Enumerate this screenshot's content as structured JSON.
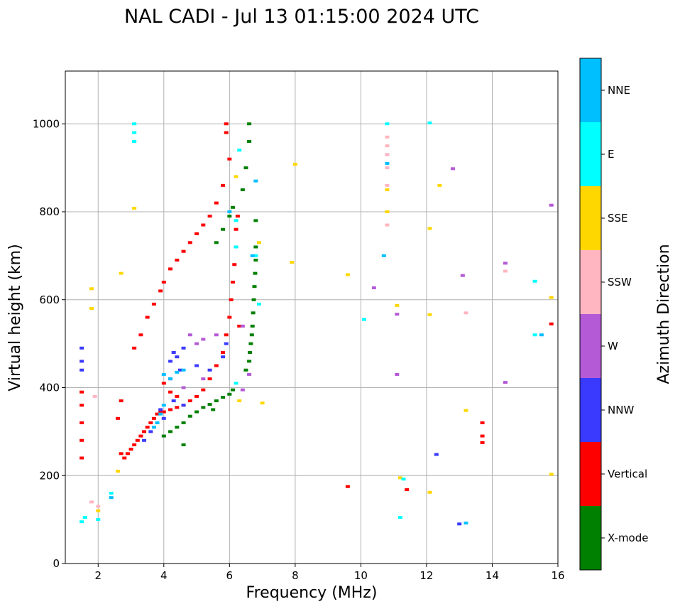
{
  "chart_data": {
    "type": "scatter",
    "title": "NAL CADI - Jul 13 01:15:00 2024 UTC",
    "xlabel": "Frequency (MHz)",
    "ylabel": "Virtual height (km)",
    "xlim": [
      1,
      16
    ],
    "ylim": [
      0,
      1120
    ],
    "xticks": [
      2,
      4,
      6,
      8,
      10,
      12,
      14,
      16
    ],
    "yticks": [
      0,
      200,
      400,
      600,
      800,
      1000
    ],
    "grid": true,
    "colorbar": {
      "label": "Azimuth Direction",
      "categories": [
        {
          "name": "X-mode",
          "color": "#008000"
        },
        {
          "name": "Vertical",
          "color": "#ff0000"
        },
        {
          "name": "NNW",
          "color": "#3a3aff"
        },
        {
          "name": "W",
          "color": "#b45ad6"
        },
        {
          "name": "SSW",
          "color": "#ffb6c1"
        },
        {
          "name": "SSE",
          "color": "#ffd700"
        },
        {
          "name": "E",
          "color": "#00ffff"
        },
        {
          "name": "NNE",
          "color": "#00bfff"
        }
      ]
    },
    "series": [
      {
        "name": "X-mode",
        "points": [
          [
            4.0,
            290
          ],
          [
            4.2,
            300
          ],
          [
            4.4,
            310
          ],
          [
            4.6,
            320
          ],
          [
            4.8,
            335
          ],
          [
            5.0,
            345
          ],
          [
            5.2,
            355
          ],
          [
            5.4,
            362
          ],
          [
            5.6,
            370
          ],
          [
            5.8,
            378
          ],
          [
            6.0,
            385
          ],
          [
            6.1,
            395
          ],
          [
            6.5,
            440
          ],
          [
            6.6,
            460
          ],
          [
            6.62,
            480
          ],
          [
            6.65,
            500
          ],
          [
            6.68,
            520
          ],
          [
            6.7,
            540
          ],
          [
            6.72,
            570
          ],
          [
            6.74,
            600
          ],
          [
            6.76,
            630
          ],
          [
            6.78,
            660
          ],
          [
            6.8,
            690
          ],
          [
            6.8,
            720
          ],
          [
            6.8,
            780
          ],
          [
            5.6,
            730
          ],
          [
            5.8,
            760
          ],
          [
            6.0,
            790
          ],
          [
            6.1,
            810
          ],
          [
            6.4,
            850
          ],
          [
            6.6,
            960
          ],
          [
            6.6,
            1000
          ],
          [
            6.5,
            900
          ],
          [
            4.6,
            270
          ],
          [
            5.5,
            350
          ]
        ]
      },
      {
        "name": "Vertical",
        "points": [
          [
            1.5,
            240
          ],
          [
            1.5,
            280
          ],
          [
            1.5,
            320
          ],
          [
            1.5,
            360
          ],
          [
            1.5,
            390
          ],
          [
            2.7,
            250
          ],
          [
            2.8,
            240
          ],
          [
            2.9,
            250
          ],
          [
            3.0,
            260
          ],
          [
            3.1,
            270
          ],
          [
            3.2,
            280
          ],
          [
            3.3,
            290
          ],
          [
            3.4,
            300
          ],
          [
            3.5,
            310
          ],
          [
            3.6,
            320
          ],
          [
            3.7,
            330
          ],
          [
            3.8,
            340
          ],
          [
            3.9,
            345
          ],
          [
            4.0,
            345
          ],
          [
            4.2,
            350
          ],
          [
            4.4,
            355
          ],
          [
            4.6,
            360
          ],
          [
            4.8,
            370
          ],
          [
            5.0,
            380
          ],
          [
            5.2,
            395
          ],
          [
            5.4,
            420
          ],
          [
            5.6,
            450
          ],
          [
            5.8,
            480
          ],
          [
            5.9,
            520
          ],
          [
            6.0,
            560
          ],
          [
            6.05,
            600
          ],
          [
            6.1,
            640
          ],
          [
            6.15,
            680
          ],
          [
            6.2,
            720
          ],
          [
            6.2,
            760
          ],
          [
            6.25,
            790
          ],
          [
            3.1,
            490
          ],
          [
            3.3,
            520
          ],
          [
            3.5,
            560
          ],
          [
            3.7,
            590
          ],
          [
            3.9,
            620
          ],
          [
            4.0,
            640
          ],
          [
            4.2,
            670
          ],
          [
            4.4,
            690
          ],
          [
            4.6,
            710
          ],
          [
            4.8,
            730
          ],
          [
            5.0,
            750
          ],
          [
            5.2,
            770
          ],
          [
            5.4,
            790
          ],
          [
            5.6,
            820
          ],
          [
            5.8,
            860
          ],
          [
            5.9,
            980
          ],
          [
            5.9,
            1000
          ],
          [
            6.0,
            920
          ],
          [
            4.0,
            410
          ],
          [
            4.2,
            390
          ],
          [
            4.4,
            380
          ],
          [
            6.3,
            540
          ],
          [
            13.7,
            320
          ],
          [
            13.7,
            290
          ],
          [
            13.7,
            275
          ],
          [
            15.8,
            545
          ],
          [
            9.6,
            175
          ],
          [
            11.4,
            168
          ],
          [
            2.6,
            330
          ],
          [
            2.7,
            370
          ]
        ]
      },
      {
        "name": "NNW",
        "points": [
          [
            1.5,
            440
          ],
          [
            1.5,
            460
          ],
          [
            1.5,
            490
          ],
          [
            4.2,
            460
          ],
          [
            4.3,
            480
          ],
          [
            4.4,
            470
          ],
          [
            4.5,
            440
          ],
          [
            4.2,
            420
          ],
          [
            3.9,
            350
          ],
          [
            4.0,
            330
          ],
          [
            4.6,
            490
          ],
          [
            5.0,
            450
          ],
          [
            5.4,
            440
          ],
          [
            5.8,
            470
          ],
          [
            5.9,
            500
          ],
          [
            10.8,
            930
          ],
          [
            12.3,
            248
          ],
          [
            13.0,
            90
          ],
          [
            4.3,
            370
          ],
          [
            4.6,
            360
          ],
          [
            3.6,
            300
          ],
          [
            3.4,
            280
          ]
        ]
      },
      {
        "name": "W",
        "points": [
          [
            4.8,
            520
          ],
          [
            5.0,
            500
          ],
          [
            5.2,
            510
          ],
          [
            5.6,
            520
          ],
          [
            6.4,
            540
          ],
          [
            6.6,
            430
          ],
          [
            12.8,
            898
          ],
          [
            13.1,
            655
          ],
          [
            15.8,
            815
          ],
          [
            11.1,
            430
          ],
          [
            11.1,
            567
          ],
          [
            14.4,
            412
          ],
          [
            10.4,
            627
          ],
          [
            14.4,
            683
          ],
          [
            6.4,
            395
          ],
          [
            4.6,
            400
          ],
          [
            5.2,
            420
          ]
        ]
      },
      {
        "name": "SSW",
        "points": [
          [
            10.8,
            860
          ],
          [
            10.8,
            900
          ],
          [
            10.8,
            930
          ],
          [
            10.8,
            950
          ],
          [
            10.8,
            970
          ],
          [
            10.8,
            770
          ],
          [
            13.2,
            570
          ],
          [
            14.4,
            665
          ],
          [
            1.9,
            380
          ],
          [
            1.8,
            140
          ],
          [
            2.0,
            130
          ]
        ]
      },
      {
        "name": "SSE",
        "points": [
          [
            6.2,
            880
          ],
          [
            6.3,
            370
          ],
          [
            3.1,
            808
          ],
          [
            2.7,
            660
          ],
          [
            1.8,
            580
          ],
          [
            1.8,
            625
          ],
          [
            12.4,
            860
          ],
          [
            12.1,
            762
          ],
          [
            11.1,
            587
          ],
          [
            12.1,
            566
          ],
          [
            13.2,
            348
          ],
          [
            15.8,
            605
          ],
          [
            15.8,
            203
          ],
          [
            8.0,
            908
          ],
          [
            9.6,
            657
          ],
          [
            7.9,
            685
          ],
          [
            10.8,
            850
          ],
          [
            10.8,
            800
          ],
          [
            11.2,
            195
          ],
          [
            12.1,
            162
          ],
          [
            2.6,
            210
          ],
          [
            7.0,
            365
          ],
          [
            2.0,
            120
          ],
          [
            6.9,
            730
          ]
        ]
      },
      {
        "name": "E",
        "points": [
          [
            3.1,
            960
          ],
          [
            3.1,
            980
          ],
          [
            3.1,
            1000
          ],
          [
            1.5,
            95
          ],
          [
            1.6,
            105
          ],
          [
            2.0,
            100
          ],
          [
            6.2,
            410
          ],
          [
            6.2,
            720
          ],
          [
            6.2,
            780
          ],
          [
            6.3,
            940
          ],
          [
            11.2,
            105
          ],
          [
            11.3,
            192
          ],
          [
            10.1,
            555
          ],
          [
            15.3,
            520
          ],
          [
            15.3,
            642
          ],
          [
            12.1,
            1002
          ],
          [
            10.8,
            1000
          ],
          [
            2.4,
            160
          ],
          [
            6.8,
            700
          ],
          [
            6.9,
            590
          ]
        ]
      },
      {
        "name": "NNE",
        "points": [
          [
            4.0,
            430
          ],
          [
            4.2,
            420
          ],
          [
            4.4,
            435
          ],
          [
            4.6,
            440
          ],
          [
            3.8,
            320
          ],
          [
            3.9,
            340
          ],
          [
            3.7,
            310
          ],
          [
            4.0,
            360
          ],
          [
            6.7,
            700
          ],
          [
            10.8,
            910
          ],
          [
            10.7,
            700
          ],
          [
            13.2,
            92
          ],
          [
            15.5,
            520
          ],
          [
            2.4,
            150
          ],
          [
            6.0,
            800
          ],
          [
            6.8,
            870
          ]
        ]
      }
    ]
  }
}
